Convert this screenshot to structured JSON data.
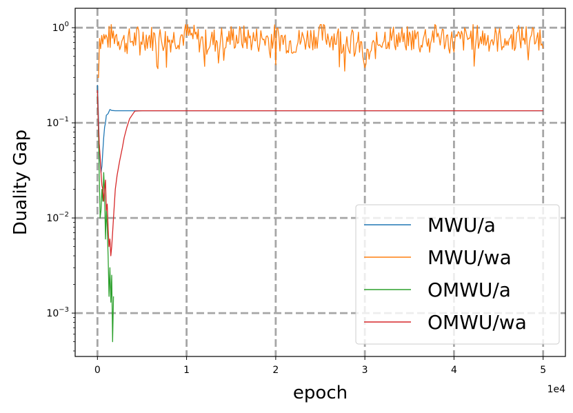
{
  "chart_data": {
    "type": "line",
    "xlabel": "epoch",
    "ylabel": "Duality Gap",
    "x_offset_label": "1e4",
    "xlim": [
      -2500,
      52500
    ],
    "ylim": [
      0.00035,
      1.6
    ],
    "yscale": "log",
    "x_ticks": [
      0,
      10000,
      20000,
      30000,
      40000,
      50000
    ],
    "x_tick_labels": [
      "0",
      "1",
      "2",
      "3",
      "4",
      "5"
    ],
    "y_ticks": [
      0.001,
      0.01,
      0.1,
      1
    ],
    "grid": true,
    "legend_position": "lower-right",
    "series": [
      {
        "name": "MWU/a",
        "color": "#1f77b4",
        "x": [
          0,
          100,
          200,
          300,
          400,
          500,
          600,
          700,
          800,
          900,
          1000,
          1200,
          1400,
          1600,
          2000,
          3000,
          5000,
          10000,
          20000,
          30000,
          40000,
          50000
        ],
        "y": [
          0.25,
          0.13,
          0.06,
          0.04,
          0.03,
          0.035,
          0.05,
          0.07,
          0.09,
          0.1,
          0.12,
          0.125,
          0.138,
          0.135,
          0.134,
          0.134,
          0.134,
          0.134,
          0.134,
          0.134,
          0.134,
          0.134
        ]
      },
      {
        "name": "MWU/wa",
        "color": "#ff7f0e",
        "x": [
          0,
          200,
          1000,
          2000,
          3000,
          5000,
          8000,
          10000,
          12000,
          15000,
          18000,
          20000,
          22000,
          25000,
          28000,
          29500,
          30000,
          32000,
          35000,
          38000,
          40000,
          42000,
          45000,
          48000,
          50000
        ],
        "y": [
          0.3,
          0.8,
          0.75,
          0.85,
          0.7,
          0.8,
          0.75,
          0.85,
          0.7,
          0.8,
          0.75,
          0.8,
          0.7,
          0.85,
          0.75,
          0.65,
          0.45,
          0.8,
          0.75,
          0.85,
          0.7,
          0.8,
          0.75,
          0.8,
          0.8
        ],
        "noise": true
      },
      {
        "name": "OMWU/a",
        "color": "#2ca02c",
        "x": [
          0,
          100,
          200,
          300,
          400,
          500,
          600,
          700,
          800,
          900,
          1000,
          1100,
          1200,
          1300,
          1400,
          1500,
          1600,
          1700,
          1800
        ],
        "y": [
          0.2,
          0.1,
          0.03,
          0.01,
          0.012,
          0.02,
          0.015,
          0.03,
          0.018,
          0.006,
          0.012,
          0.008,
          0.004,
          0.0015,
          0.003,
          0.0013,
          0.0025,
          0.0005,
          0.0015
        ]
      },
      {
        "name": "OMWU/wa",
        "color": "#d62728",
        "x": [
          0,
          100,
          200,
          300,
          400,
          500,
          600,
          700,
          800,
          900,
          1000,
          1100,
          1200,
          1300,
          1400,
          1500,
          1600,
          1700,
          1800,
          2000,
          2200,
          2500,
          2800,
          3000,
          3300,
          3600,
          4000,
          4200,
          5000,
          10000,
          20000,
          30000,
          40000,
          50000
        ],
        "y": [
          0.22,
          0.1,
          0.06,
          0.045,
          0.03,
          0.022,
          0.02,
          0.015,
          0.02,
          0.025,
          0.012,
          0.014,
          0.008,
          0.005,
          0.006,
          0.004,
          0.005,
          0.007,
          0.01,
          0.02,
          0.028,
          0.04,
          0.055,
          0.07,
          0.09,
          0.11,
          0.125,
          0.133,
          0.134,
          0.134,
          0.134,
          0.134,
          0.134,
          0.134
        ]
      }
    ]
  }
}
